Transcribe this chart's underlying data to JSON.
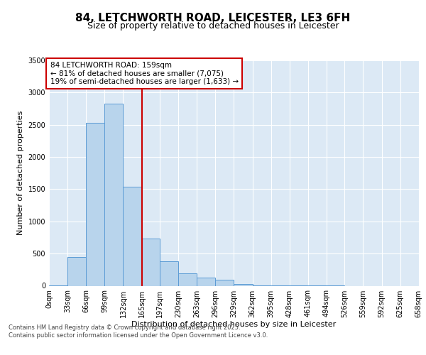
{
  "title": "84, LETCHWORTH ROAD, LEICESTER, LE3 6FH",
  "subtitle": "Size of property relative to detached houses in Leicester",
  "xlabel": "Distribution of detached houses by size in Leicester",
  "ylabel": "Number of detached properties",
  "bar_color": "#b8d4ec",
  "bar_edge_color": "#5b9bd5",
  "background_color": "#dce9f5",
  "grid_color": "#ffffff",
  "bin_edges": [
    0,
    33,
    66,
    99,
    132,
    165,
    197,
    230,
    263,
    296,
    329,
    362,
    395,
    428,
    461,
    494,
    526,
    559,
    592,
    625,
    658
  ],
  "bin_labels": [
    "0sqm",
    "33sqm",
    "66sqm",
    "99sqm",
    "132sqm",
    "165sqm",
    "197sqm",
    "230sqm",
    "263sqm",
    "296sqm",
    "329sqm",
    "362sqm",
    "395sqm",
    "428sqm",
    "461sqm",
    "494sqm",
    "526sqm",
    "559sqm",
    "592sqm",
    "625sqm",
    "658sqm"
  ],
  "bar_heights": [
    10,
    450,
    2530,
    2830,
    1540,
    730,
    380,
    190,
    130,
    90,
    30,
    10,
    5,
    2,
    1,
    1,
    0,
    0,
    0,
    0
  ],
  "property_line_x": 165,
  "property_line_color": "#cc0000",
  "annotation_text": "84 LETCHWORTH ROAD: 159sqm\n← 81% of detached houses are smaller (7,075)\n19% of semi-detached houses are larger (1,633) →",
  "annotation_box_color": "#cc0000",
  "ylim": [
    0,
    3500
  ],
  "yticks": [
    0,
    500,
    1000,
    1500,
    2000,
    2500,
    3000,
    3500
  ],
  "footer_text": "Contains HM Land Registry data © Crown copyright and database right 2025.\nContains public sector information licensed under the Open Government Licence v3.0.",
  "title_fontsize": 11,
  "subtitle_fontsize": 9,
  "ylabel_fontsize": 8,
  "xlabel_fontsize": 8,
  "tick_fontsize": 7,
  "annotation_fontsize": 7.5,
  "footer_fontsize": 6
}
